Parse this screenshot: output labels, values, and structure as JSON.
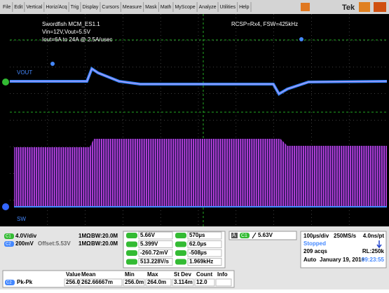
{
  "menu": [
    "File",
    "Edit",
    "Vertical",
    "Horiz/Acq",
    "Trig",
    "Display",
    "Cursors",
    "Measure",
    "Mask",
    "Math",
    "MyScope",
    "Analyze",
    "Utilities",
    "Help"
  ],
  "brand": "Tek",
  "notes": [
    "Swordfish MCM_ES1.1",
    "Vin=12V,Vout=5.5V",
    "Iout=6A to 24A @ 2.5A/usec"
  ],
  "note_right": "RCSP=Rx4, FSW=425kHz",
  "trace_labels": {
    "vout": "VOUT",
    "sw": "SW"
  },
  "channels": [
    {
      "badge": "C1",
      "scale": "4.0V/div",
      "offset": "",
      "imp": "1MΩ",
      "bw": "BW:20.0M"
    },
    {
      "badge": "C2",
      "scale": "200mV",
      "offset": "Offset:5.53V",
      "imp": "1MΩ",
      "bw": "BW:20.0M"
    }
  ],
  "cursors": {
    "volts": [
      "5.66V",
      "5.399V",
      "-260.72mV",
      "513.228V/s"
    ],
    "times": [
      "570µs",
      "62.0µs",
      "-508µs",
      "1.969kHz"
    ]
  },
  "trigger": {
    "mode": "A",
    "source": "C1",
    "level": "5.63V"
  },
  "timebase": {
    "scale": "100µs/div",
    "rate": "250MS/s",
    "res": "4.0ns/pt",
    "state": "Stopped",
    "acqs": "209 acqs",
    "rl": "RL:250k",
    "trig": "Auto",
    "date": "January 19, 2016",
    "time": "09:23:55"
  },
  "table": {
    "headers": [
      "Value",
      "Mean",
      "Min",
      "Max",
      "St Dev",
      "Count",
      "Info"
    ],
    "rows": [
      {
        "badge": "C2",
        "label": "Pk-Pk",
        "cells": [
          "256.0mV",
          "262.66667m",
          "256.0m",
          "264.0m",
          "3.114m",
          "12.0",
          ""
        ]
      }
    ]
  }
}
